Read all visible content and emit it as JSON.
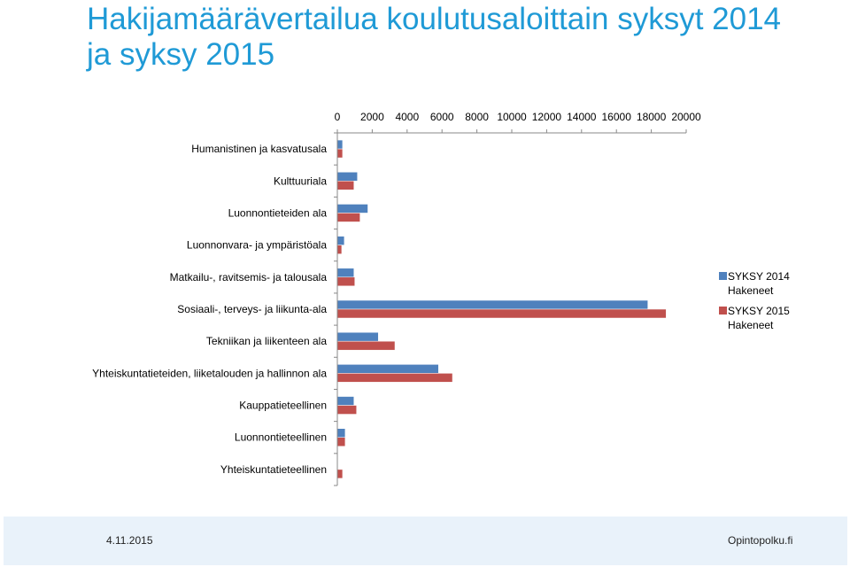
{
  "page": {
    "title": "Hakijamäärävertailua koulutusaloittain syksyt 2014 ja syksy 2015",
    "footer_date": "4.11.2015",
    "footer_site": "Opintopolku.fi"
  },
  "chart_data": {
    "type": "bar",
    "orientation": "horizontal",
    "title": "",
    "xlabel": "",
    "ylabel": "",
    "xlim": [
      0,
      20000
    ],
    "x_ticks": [
      0,
      2000,
      4000,
      6000,
      8000,
      10000,
      12000,
      14000,
      16000,
      18000,
      20000
    ],
    "x_axis_position": "top",
    "grid": false,
    "legend_position": "right",
    "categories": [
      "Humanistinen ja kasvatusala",
      "Kulttuuriala",
      "Luonnontieteiden ala",
      "Luonnonvara- ja ympäristöala",
      "Matkailu-, ravitsemis- ja talousala",
      "Sosiaali-, terveys- ja liikunta-ala",
      "Tekniikan ja liikenteen ala",
      "Yhteiskuntatieteiden, liiketalouden ja hallinnon ala",
      "Kauppatieteellinen",
      "Luonnontieteellinen",
      "Yhteiskuntatieteellinen"
    ],
    "series": [
      {
        "name": "SYKSY 2014 Hakeneet",
        "legend_lines": [
          "SYKSY 2014",
          "Hakeneet"
        ],
        "color": "#4f81bd",
        "values": [
          300,
          1150,
          1750,
          400,
          950,
          17800,
          2350,
          5800,
          950,
          450,
          0
        ]
      },
      {
        "name": "SYKSY 2015 Hakeneet",
        "legend_lines": [
          "SYKSY 2015",
          "Hakeneet"
        ],
        "color": "#c0504d",
        "values": [
          300,
          950,
          1300,
          250,
          1000,
          18850,
          3300,
          6600,
          1100,
          450,
          300
        ]
      }
    ]
  }
}
